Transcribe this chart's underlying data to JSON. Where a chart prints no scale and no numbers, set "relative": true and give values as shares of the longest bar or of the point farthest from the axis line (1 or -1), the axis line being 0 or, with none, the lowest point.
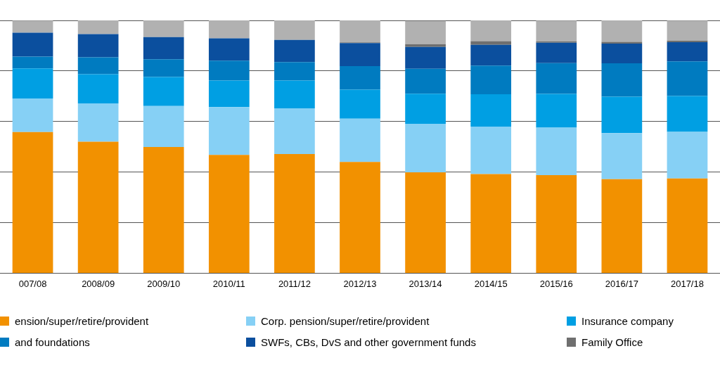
{
  "chart_data": {
    "type": "bar",
    "stacked": true,
    "relative": true,
    "grid": "y",
    "legend": "bottom",
    "categories": [
      "007/08",
      "2008/09",
      "2009/10",
      "2010/11",
      "2011/12",
      "2012/13",
      "2013/14",
      "2014/15",
      "2015/16",
      "2016/17",
      "2017/18"
    ],
    "series": [
      {
        "name": "ension/super/retire/provident",
        "color": "#f29100",
        "values": [
          0.558,
          0.52,
          0.499,
          0.468,
          0.471,
          0.44,
          0.399,
          0.392,
          0.388,
          0.372,
          0.375
        ]
      },
      {
        "name": "Corp. pension/super/retire/provident",
        "color": "#86d0f5",
        "values": [
          0.133,
          0.152,
          0.162,
          0.189,
          0.181,
          0.171,
          0.192,
          0.188,
          0.188,
          0.182,
          0.184
        ]
      },
      {
        "name": "Insurance company",
        "color": "#009fe3",
        "values": [
          0.119,
          0.115,
          0.115,
          0.105,
          0.11,
          0.115,
          0.119,
          0.128,
          0.133,
          0.144,
          0.142
        ]
      },
      {
        "name": "and foundations",
        "color": "#007bc0",
        "values": [
          0.047,
          0.067,
          0.07,
          0.079,
          0.073,
          0.093,
          0.099,
          0.113,
          0.122,
          0.132,
          0.137
        ]
      },
      {
        "name": "SWFs, CBs, DvS and other government funds",
        "color": "#0b4f9e",
        "values": [
          0.094,
          0.092,
          0.088,
          0.088,
          0.088,
          0.091,
          0.086,
          0.082,
          0.081,
          0.078,
          0.076
        ]
      },
      {
        "name": "Family Office",
        "color": "#6f6f6f",
        "values": [
          0,
          0,
          0,
          0,
          0,
          0.003,
          0.011,
          0.015,
          0.005,
          0.007,
          0.006
        ]
      },
      {
        "color": "#b1b1b1",
        "values": [
          0.048,
          0.054,
          0.066,
          0.071,
          0.077,
          0.087,
          0.092,
          0.082,
          0.082,
          0.085,
          0.079
        ]
      }
    ]
  }
}
